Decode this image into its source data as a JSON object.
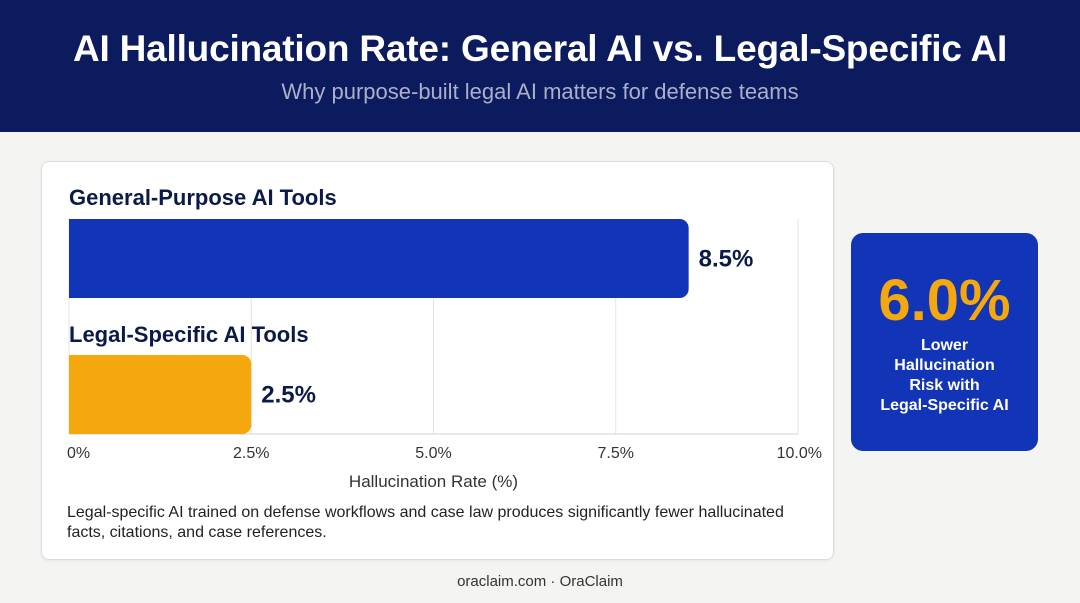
{
  "header": {
    "title": "AI Hallucination Rate: General AI vs. Legal-Specific AI",
    "subtitle": "Why purpose-built legal AI matters for defense teams"
  },
  "chart_data": {
    "type": "bar",
    "orientation": "horizontal",
    "categories": [
      "General-Purpose AI Tools",
      "Legal-Specific AI Tools"
    ],
    "values": [
      8.5,
      2.5
    ],
    "value_labels": [
      "8.5%",
      "2.5%"
    ],
    "colors": [
      "#1235b8",
      "#f5a80e"
    ],
    "xlabel": "Hallucination Rate (%)",
    "xlim": [
      0,
      10
    ],
    "xticks": [
      0,
      2.5,
      5,
      7.5,
      10
    ],
    "xtick_labels": [
      "0%",
      "2.5%",
      "5.0%",
      "7.5%",
      "10.0%"
    ],
    "grid": true
  },
  "note": "Legal-specific AI trained on defense workflows and case law produces significantly fewer hallucinated facts, citations, and case references.",
  "callout": {
    "value": "6.0%",
    "line1": "Lower",
    "line2": "Hallucination",
    "line3": "Risk with",
    "line4": "Legal-Specific AI"
  },
  "footer": "oraclaim.com · OraClaim",
  "colors": {
    "header_bg": "#0c1a5e",
    "accent_blue": "#1235b8",
    "accent_orange": "#f5a80e"
  }
}
